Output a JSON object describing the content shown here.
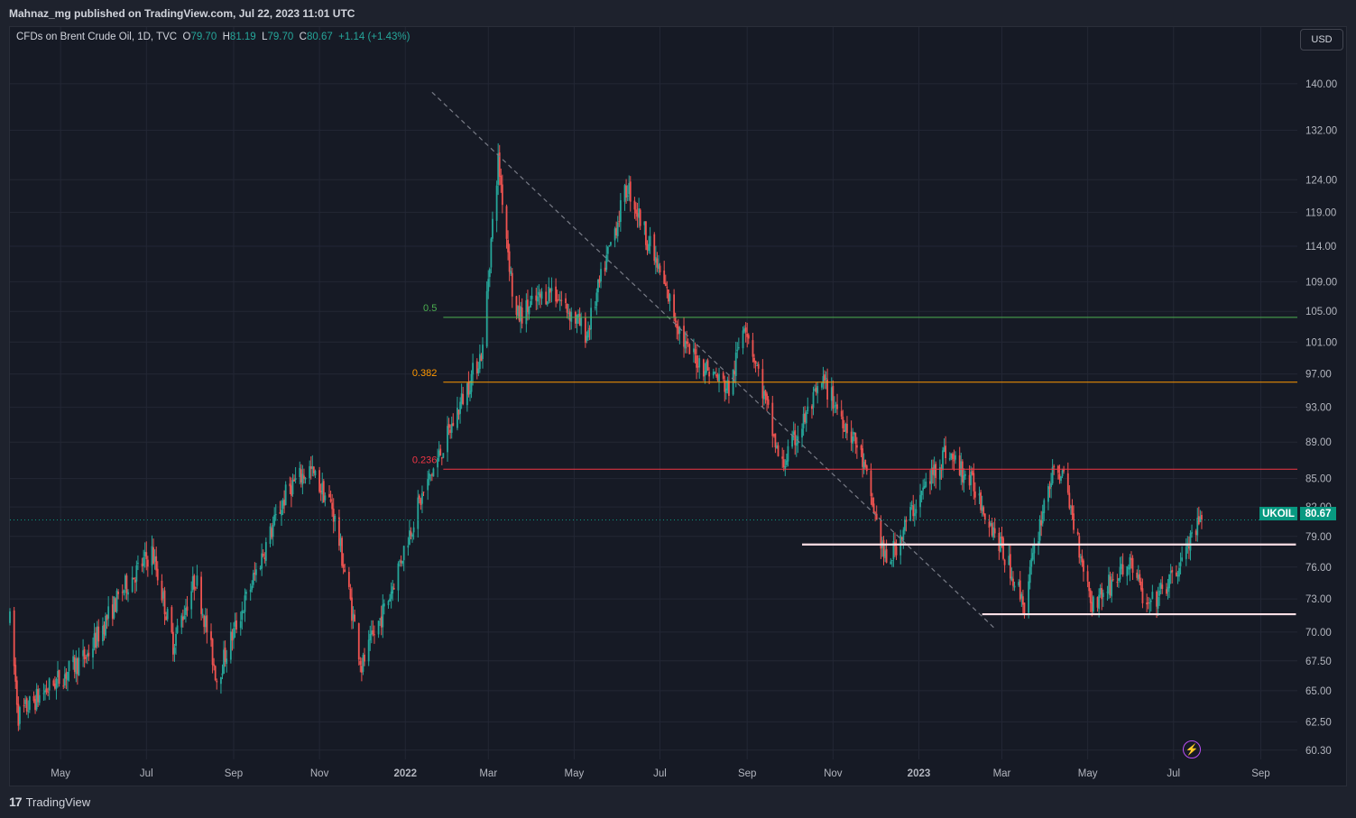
{
  "header": {
    "publisher_text": "Mahnaz_mg published on TradingView.com, Jul 22, 2023 11:01 UTC"
  },
  "legend": {
    "symbol": "CFDs on Brent Crude Oil, 1D, TVC",
    "o_label": "O",
    "o_value": "79.70",
    "h_label": "H",
    "h_value": "81.19",
    "l_label": "L",
    "l_value": "79.70",
    "c_label": "C",
    "c_value": "80.67",
    "change": "+1.14 (+1.43%)"
  },
  "currency_button": "USD",
  "price_label": {
    "ticker": "UKOIL",
    "last": "80.67"
  },
  "footer": {
    "brand": "TradingView",
    "logo_mark": "17"
  },
  "colors": {
    "up": "#26a69a",
    "down": "#ef5350",
    "fib_05": "#4caf50",
    "fib_0382": "#ff9800",
    "fib_0236": "#f23645",
    "support": "#ffe0e6",
    "trend": "#787b86",
    "accent": "#089981"
  },
  "icons": {
    "bolt": "lightning-bolt-icon"
  },
  "chart_data": {
    "type": "candlestick",
    "log_scale": true,
    "ylim": [
      59.6,
      146
    ],
    "y_ticks": [
      "140.00",
      "132.00",
      "124.00",
      "119.00",
      "114.00",
      "109.00",
      "105.00",
      "101.00",
      "97.00",
      "93.00",
      "89.00",
      "85.00",
      "82.00",
      "79.00",
      "76.00",
      "73.00",
      "70.00",
      "67.50",
      "65.00",
      "62.50",
      "60.30"
    ],
    "x_ticks": [
      "May",
      "Jul",
      "Sep",
      "Nov",
      "2022",
      "Mar",
      "May",
      "Jul",
      "Sep",
      "Nov",
      "2023",
      "Mar",
      "May",
      "Jul",
      "Sep"
    ],
    "x_tick_dates": [
      "2021-05-01",
      "2021-07-01",
      "2021-09-01",
      "2021-11-01",
      "2022-01-01",
      "2022-03-01",
      "2022-05-01",
      "2022-07-01",
      "2022-09-01",
      "2022-11-01",
      "2023-01-01",
      "2023-03-01",
      "2023-05-01",
      "2023-07-01",
      "2023-09-01"
    ],
    "price_path": [
      [
        "2021-03-26",
        71
      ],
      [
        "2021-04-01",
        63
      ],
      [
        "2021-04-20",
        65
      ],
      [
        "2021-05-20",
        68
      ],
      [
        "2021-06-15",
        74
      ],
      [
        "2021-07-05",
        77.5
      ],
      [
        "2021-07-20",
        69
      ],
      [
        "2021-08-05",
        75
      ],
      [
        "2021-08-20",
        66
      ],
      [
        "2021-09-10",
        73
      ],
      [
        "2021-10-10",
        84
      ],
      [
        "2021-10-25",
        86
      ],
      [
        "2021-11-10",
        82
      ],
      [
        "2021-12-01",
        67
      ],
      [
        "2021-12-20",
        73
      ],
      [
        "2022-01-10",
        82
      ],
      [
        "2022-02-01",
        90
      ],
      [
        "2022-02-25",
        100
      ],
      [
        "2022-03-08",
        127
      ],
      [
        "2022-03-20",
        104
      ],
      [
        "2022-04-15",
        108
      ],
      [
        "2022-05-10",
        102
      ],
      [
        "2022-06-08",
        123
      ],
      [
        "2022-07-01",
        110
      ],
      [
        "2022-07-20",
        100
      ],
      [
        "2022-08-20",
        95
      ],
      [
        "2022-08-30",
        104
      ],
      [
        "2022-09-25",
        86
      ],
      [
        "2022-10-25",
        96
      ],
      [
        "2022-11-20",
        88
      ],
      [
        "2022-12-09",
        76
      ],
      [
        "2022-12-25",
        81
      ],
      [
        "2023-01-20",
        88
      ],
      [
        "2023-02-10",
        84
      ],
      [
        "2023-03-17",
        72.5
      ],
      [
        "2023-04-03",
        84.5
      ],
      [
        "2023-04-12",
        86
      ],
      [
        "2023-05-04",
        72.5
      ],
      [
        "2023-06-01",
        76.5
      ],
      [
        "2023-06-12",
        72
      ],
      [
        "2023-07-01",
        75
      ],
      [
        "2023-07-21",
        80.67
      ]
    ],
    "fib_levels": [
      {
        "label": "0.5",
        "price": 104.2
      },
      {
        "label": "0.382",
        "price": 96.0
      },
      {
        "label": "0.236",
        "price": 86.0
      }
    ],
    "support_lines": [
      {
        "price": 78.2,
        "from": "2022-10-10",
        "to": "2023-09-26"
      },
      {
        "price": 71.6,
        "from": "2023-02-15",
        "to": "2023-09-26"
      }
    ],
    "trend_line": {
      "from": [
        "2022-01-20",
        138.5
      ],
      "to": [
        "2023-02-25",
        70.2
      ]
    },
    "last_price": 80.67
  }
}
